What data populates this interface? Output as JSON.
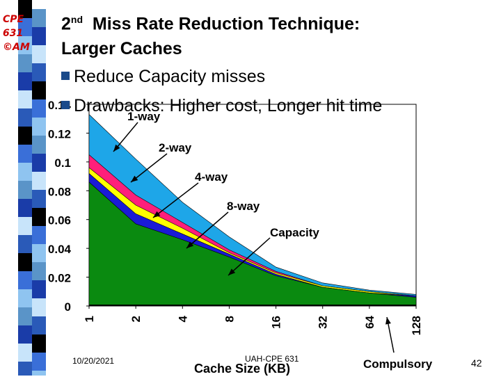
{
  "logo": {
    "line1": "CPE",
    "line2": "631",
    "line3": "©AM"
  },
  "title": {
    "line1_sup": "nd",
    "line1_pre": "2",
    "line1_rest": "  Miss Rate Reduction Technique:",
    "line2": "Larger Caches"
  },
  "bullets": [
    "Reduce Capacity misses",
    "Drawbacks: Higher cost, Longer hit time"
  ],
  "footer": {
    "date": "10/20/2021",
    "center": "UAH-CPE 631",
    "page": "42"
  },
  "colors": {
    "one_way": "#1ea6e8",
    "two_way": "#ff1f7a",
    "four_way": "#ffff00",
    "eight_way": "#1a1ad6",
    "capacity": "#0a8a10",
    "compulsory": "#000000"
  },
  "chart_data": {
    "type": "area",
    "categories": [
      "1",
      "2",
      "4",
      "8",
      "16",
      "32",
      "64",
      "128"
    ],
    "xlabel": "Cache Size (KB)",
    "ylabel": "",
    "ylim": [
      0,
      0.14
    ],
    "yticks": [
      "0",
      "0.02",
      "0.04",
      "0.06",
      "0.08",
      "0.1",
      "0.12",
      "0.14"
    ],
    "series": [
      {
        "name": "1-way",
        "values": [
          0.133,
          0.102,
          0.072,
          0.048,
          0.027,
          0.016,
          0.011,
          0.008
        ]
      },
      {
        "name": "2-way",
        "values": [
          0.105,
          0.077,
          0.058,
          0.039,
          0.024,
          0.014,
          0.01,
          0.007
        ]
      },
      {
        "name": "4-way",
        "values": [
          0.096,
          0.07,
          0.054,
          0.037,
          0.023,
          0.014,
          0.01,
          0.007
        ]
      },
      {
        "name": "8-way",
        "values": [
          0.092,
          0.064,
          0.05,
          0.036,
          0.022,
          0.013,
          0.009,
          0.007
        ]
      },
      {
        "name": "Capacity",
        "values": [
          0.086,
          0.057,
          0.046,
          0.034,
          0.021,
          0.013,
          0.009,
          0.006
        ]
      },
      {
        "name": "Compulsory",
        "values": [
          0.0008,
          0.0008,
          0.0008,
          0.0008,
          0.0008,
          0.0008,
          0.0008,
          0.0008
        ]
      }
    ]
  }
}
